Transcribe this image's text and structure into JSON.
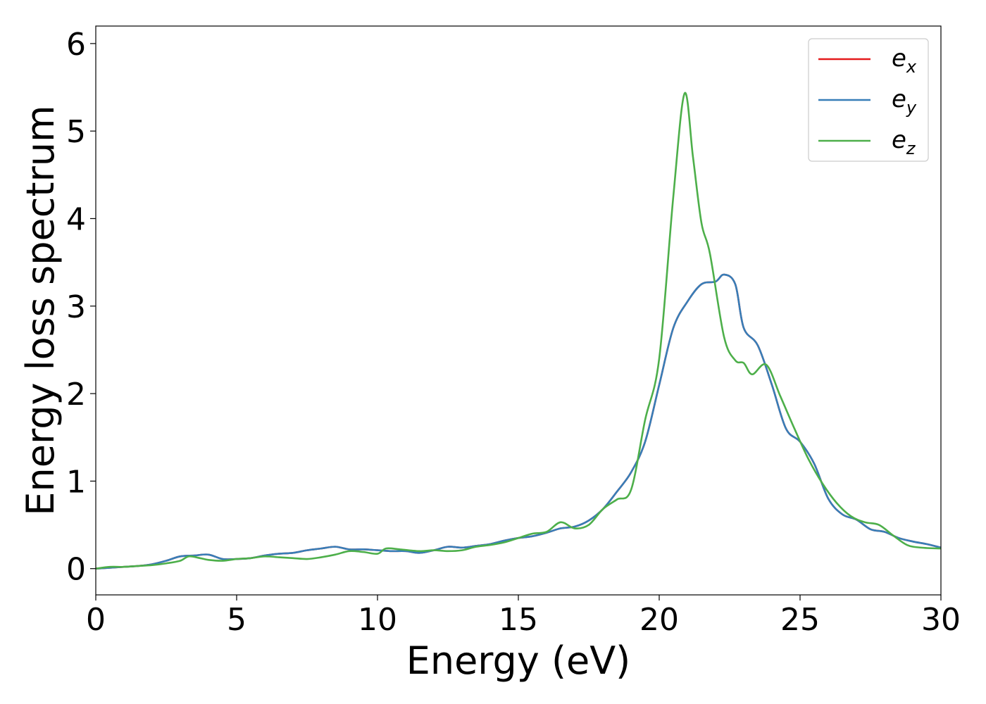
{
  "chart_data": {
    "type": "line",
    "xlabel": "Energy (eV)",
    "ylabel": "Energy loss spectrum",
    "xlim": [
      0,
      30
    ],
    "ylim": [
      -0.3,
      6.2
    ],
    "xticks": [
      "0",
      "5",
      "10",
      "15",
      "20",
      "25",
      "30"
    ],
    "yticks": [
      "0",
      "1",
      "2",
      "3",
      "4",
      "5",
      "6"
    ],
    "grid": false,
    "legend_position": "top-right",
    "series": [
      {
        "name": "e_x",
        "label_base": "e",
        "label_sub": "x",
        "color": "#e41a1c",
        "x": [
          0,
          0.5,
          1,
          1.5,
          2,
          2.5,
          3,
          3.5,
          4,
          4.5,
          5,
          5.5,
          6,
          6.5,
          7,
          7.5,
          8,
          8.5,
          9,
          9.5,
          10,
          10.5,
          11,
          11.5,
          12,
          12.5,
          13,
          13.5,
          14,
          14.5,
          15,
          15.5,
          16,
          16.5,
          17,
          17.5,
          18,
          18.5,
          19,
          19.5,
          20,
          20.5,
          21,
          21.5,
          22,
          22.3,
          22.7,
          23,
          23.5,
          24,
          24.5,
          25,
          25.5,
          26,
          26.5,
          27,
          27.5,
          28,
          28.5,
          29,
          29.5,
          30
        ],
        "y": [
          0.0,
          0.01,
          0.02,
          0.03,
          0.05,
          0.09,
          0.14,
          0.15,
          0.16,
          0.11,
          0.11,
          0.12,
          0.15,
          0.17,
          0.18,
          0.21,
          0.23,
          0.25,
          0.22,
          0.22,
          0.21,
          0.2,
          0.2,
          0.18,
          0.21,
          0.25,
          0.24,
          0.26,
          0.28,
          0.32,
          0.35,
          0.37,
          0.41,
          0.46,
          0.48,
          0.55,
          0.68,
          0.88,
          1.1,
          1.45,
          2.1,
          2.75,
          3.05,
          3.25,
          3.28,
          3.36,
          3.25,
          2.75,
          2.55,
          2.1,
          1.6,
          1.45,
          1.2,
          0.8,
          0.62,
          0.56,
          0.45,
          0.42,
          0.35,
          0.31,
          0.28,
          0.24
        ]
      },
      {
        "name": "e_y",
        "label_base": "e",
        "label_sub": "y",
        "color": "#377eb8",
        "x": [
          0,
          0.5,
          1,
          1.5,
          2,
          2.5,
          3,
          3.5,
          4,
          4.5,
          5,
          5.5,
          6,
          6.5,
          7,
          7.5,
          8,
          8.5,
          9,
          9.5,
          10,
          10.5,
          11,
          11.5,
          12,
          12.5,
          13,
          13.5,
          14,
          14.5,
          15,
          15.5,
          16,
          16.5,
          17,
          17.5,
          18,
          18.5,
          19,
          19.5,
          20,
          20.5,
          21,
          21.5,
          22,
          22.3,
          22.7,
          23,
          23.5,
          24,
          24.5,
          25,
          25.5,
          26,
          26.5,
          27,
          27.5,
          28,
          28.5,
          29,
          29.5,
          30
        ],
        "y": [
          0.0,
          0.01,
          0.02,
          0.03,
          0.05,
          0.09,
          0.14,
          0.15,
          0.16,
          0.11,
          0.11,
          0.12,
          0.15,
          0.17,
          0.18,
          0.21,
          0.23,
          0.25,
          0.22,
          0.22,
          0.21,
          0.2,
          0.2,
          0.18,
          0.21,
          0.25,
          0.24,
          0.26,
          0.28,
          0.32,
          0.35,
          0.37,
          0.41,
          0.46,
          0.48,
          0.55,
          0.68,
          0.88,
          1.1,
          1.45,
          2.1,
          2.75,
          3.05,
          3.25,
          3.28,
          3.36,
          3.25,
          2.75,
          2.55,
          2.1,
          1.6,
          1.45,
          1.2,
          0.8,
          0.62,
          0.56,
          0.45,
          0.42,
          0.35,
          0.31,
          0.28,
          0.24
        ]
      },
      {
        "name": "e_z",
        "label_base": "e",
        "label_sub": "z",
        "color": "#4daf4a",
        "x": [
          0,
          0.5,
          1,
          1.5,
          2,
          2.5,
          3,
          3.3,
          3.7,
          4,
          4.5,
          5,
          5.5,
          6,
          6.5,
          7,
          7.5,
          8,
          8.5,
          9,
          9.5,
          10,
          10.3,
          10.8,
          11.5,
          12,
          12.5,
          13,
          13.5,
          14,
          14.5,
          15,
          15.5,
          16,
          16.5,
          17,
          17.5,
          18,
          18.5,
          19,
          19.5,
          20,
          20.5,
          20.9,
          21.2,
          21.5,
          21.8,
          22.3,
          22.7,
          23,
          23.3,
          23.8,
          24.3,
          24.8,
          25.3,
          25.8,
          26.3,
          26.8,
          27.3,
          27.8,
          28.3,
          28.8,
          29.3,
          30
        ],
        "y": [
          0.0,
          0.02,
          0.02,
          0.03,
          0.04,
          0.06,
          0.09,
          0.14,
          0.12,
          0.1,
          0.09,
          0.11,
          0.12,
          0.14,
          0.13,
          0.12,
          0.11,
          0.13,
          0.16,
          0.2,
          0.19,
          0.17,
          0.23,
          0.22,
          0.2,
          0.21,
          0.2,
          0.21,
          0.25,
          0.27,
          0.3,
          0.35,
          0.4,
          0.42,
          0.53,
          0.46,
          0.5,
          0.68,
          0.79,
          0.9,
          1.7,
          2.4,
          4.25,
          5.43,
          4.7,
          3.95,
          3.6,
          2.65,
          2.38,
          2.35,
          2.22,
          2.33,
          1.97,
          1.6,
          1.25,
          0.97,
          0.75,
          0.6,
          0.53,
          0.5,
          0.38,
          0.27,
          0.24,
          0.23
        ]
      }
    ]
  }
}
